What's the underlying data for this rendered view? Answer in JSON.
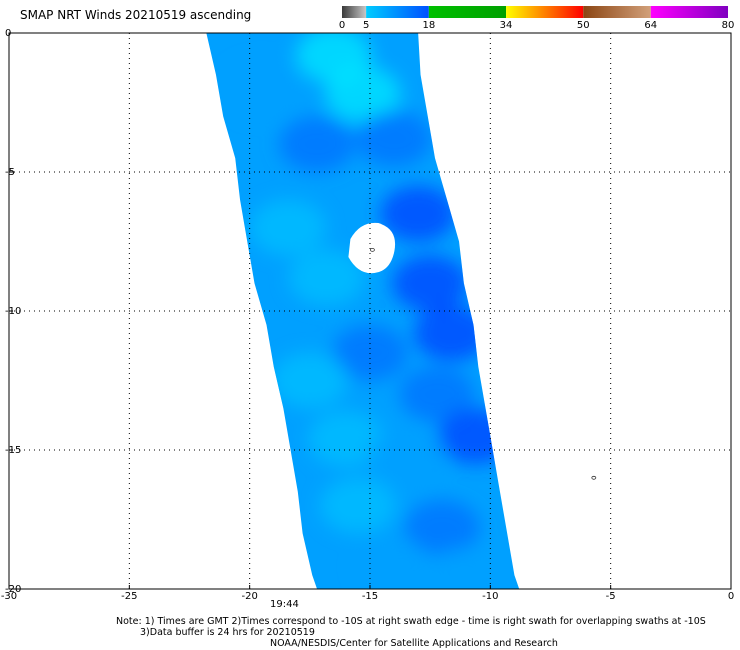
{
  "title": "SMAP NRT Winds 20210519 ascending",
  "colorbar": {
    "labels": [
      "0",
      "5",
      "18",
      "34",
      "50",
      "64",
      "80"
    ],
    "values": [
      0,
      5,
      18,
      34,
      50,
      64,
      80
    ],
    "segments": [
      {
        "from": 0,
        "to": 5,
        "colors": [
          "#3a3a3a",
          "#c8c8c8"
        ]
      },
      {
        "from": 5,
        "to": 18,
        "colors": [
          "#00ccff",
          "#0050ff"
        ]
      },
      {
        "from": 18,
        "to": 34,
        "colors": [
          "#00c000",
          "#00a000"
        ]
      },
      {
        "from": 34,
        "to": 50,
        "colors": [
          "#ffff00",
          "#ff8000",
          "#ff0000"
        ]
      },
      {
        "from": 50,
        "to": 64,
        "colors": [
          "#8b4513",
          "#d2a07a"
        ]
      },
      {
        "from": 64,
        "to": 80,
        "colors": [
          "#ff00ff",
          "#8000c0"
        ]
      }
    ]
  },
  "map": {
    "x_range": [
      -30,
      0
    ],
    "y_range": [
      0,
      -20
    ],
    "x_ticks": [
      -30,
      -25,
      -20,
      -15,
      -10,
      -5,
      0
    ],
    "y_ticks": [
      0,
      -5,
      -10,
      -15,
      -20
    ],
    "x_tick_labels": [
      "-30",
      "-25",
      "-20",
      "-15",
      "-10",
      "-5",
      "0"
    ],
    "y_tick_labels": [
      "0",
      "-5",
      "-10",
      "-15",
      "-20"
    ],
    "grid": "dotted",
    "swath_left_edge": [
      [
        -21.8,
        0
      ],
      [
        -21.4,
        -1.5
      ],
      [
        -21.1,
        -3
      ],
      [
        -20.6,
        -4.5
      ],
      [
        -20.4,
        -6
      ],
      [
        -20.1,
        -7.5
      ],
      [
        -19.8,
        -9
      ],
      [
        -19.3,
        -10.5
      ],
      [
        -19.0,
        -12
      ],
      [
        -18.6,
        -13.5
      ],
      [
        -18.3,
        -15
      ],
      [
        -18.0,
        -16.5
      ],
      [
        -17.8,
        -18
      ],
      [
        -17.4,
        -19.5
      ],
      [
        -17.2,
        -20
      ]
    ],
    "swath_right_edge": [
      [
        -13.0,
        0
      ],
      [
        -12.9,
        -1.5
      ],
      [
        -12.6,
        -3
      ],
      [
        -12.3,
        -4.5
      ],
      [
        -11.8,
        -6
      ],
      [
        -11.3,
        -7.5
      ],
      [
        -11.1,
        -9
      ],
      [
        -10.7,
        -10.5
      ],
      [
        -10.5,
        -12
      ],
      [
        -10.2,
        -13.5
      ],
      [
        -9.9,
        -15
      ],
      [
        -9.6,
        -16.5
      ],
      [
        -9.3,
        -18
      ],
      [
        -9.0,
        -19.5
      ],
      [
        -8.8,
        -20
      ]
    ],
    "gap_center": [
      -14.9,
      -7.7
    ],
    "speed_colors": [
      "#00e8ff",
      "#00c0ff",
      "#00a0ff",
      "#0070ff",
      "#0040ff"
    ],
    "markers": [
      [
        -14.9,
        -7.8
      ],
      [
        -5.7,
        -16.0
      ]
    ]
  },
  "time_label": "19:44",
  "notes": [
    "Note: 1) Times are GMT 2)Times correspond to -10S at right swath edge - time is right swath for overlapping swaths at -10S",
    "3)Data buffer is 24 hrs for 20210519",
    "NOAA/NESDIS/Center for Satellite Applications and Research"
  ]
}
